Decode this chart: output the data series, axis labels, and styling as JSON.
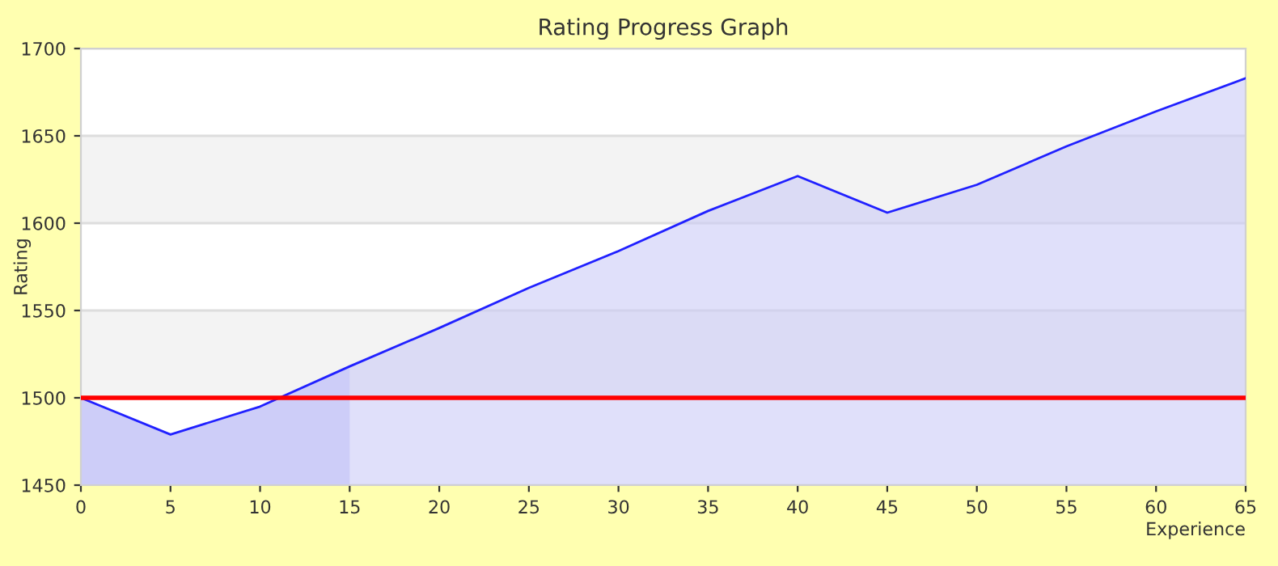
{
  "chart_data": {
    "type": "area",
    "title": "Rating Progress Graph",
    "xlabel": "Experience",
    "ylabel": "Rating",
    "x": [
      0,
      5,
      10,
      15,
      20,
      25,
      30,
      35,
      40,
      45,
      50,
      55,
      60,
      65
    ],
    "series": [
      {
        "color": "#2020ff",
        "values": [
          1500,
          1479,
          1495,
          1518,
          1540,
          1563,
          1584,
          1607,
          1627,
          1606,
          1622,
          1644,
          1664,
          1683
        ]
      }
    ],
    "xlim": [
      0,
      65
    ],
    "xticks": [
      0,
      5,
      10,
      15,
      20,
      25,
      30,
      35,
      40,
      45,
      50,
      55,
      60,
      65
    ],
    "ylim": [
      1450,
      1700
    ],
    "yticks": [
      1450,
      1500,
      1550,
      1600,
      1650,
      1700
    ],
    "grid": "y",
    "ref_lines": [
      {
        "axis": "y",
        "value": 1500,
        "color": "#ff0000"
      }
    ],
    "bands": [
      {
        "axis": "x",
        "from": 0,
        "to": 15,
        "color": "#d0d0fa"
      }
    ]
  }
}
